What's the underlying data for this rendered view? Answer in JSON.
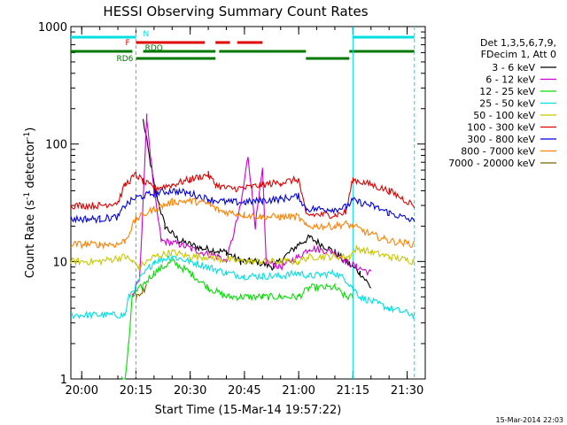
{
  "chart_data": {
    "type": "line",
    "title": "HESSI Observing Summary Count Rates",
    "xlabel": "Start Time (15-Mar-14 19:57:22)",
    "ylabel": "Count Rate (s",
    "ylabel_sup": "-1",
    "ylabel_mid": " detector",
    "ylabel_end": ")",
    "yscale": "log",
    "ylim": [
      1,
      1000
    ],
    "xlim_minutes": [
      "19:57",
      "21:35"
    ],
    "x_ticks": [
      "20:00",
      "20:15",
      "20:30",
      "20:45",
      "21:00",
      "21:15",
      "21:30"
    ],
    "y_ticks": [
      "1",
      "10",
      "100",
      "1000"
    ],
    "legend_header": [
      "Det 1,3,5,6,7,9,",
      "FDecim 1, Att 0"
    ],
    "legend_position": "right",
    "timestamp": "15-Mar-2014 22:03",
    "flags": [
      {
        "name": "N",
        "color": "#00e0e0",
        "segments": [
          [
            "19:57",
            "20:15"
          ],
          [
            "21:15",
            "21:32"
          ]
        ]
      },
      {
        "name": "F",
        "color": "#e00000",
        "segments": [
          [
            "20:15",
            "20:34"
          ],
          [
            "20:37",
            "20:41"
          ],
          [
            "20:43",
            "20:50"
          ]
        ]
      },
      {
        "name": "RDO",
        "color": "#007800",
        "segments": [
          [
            "19:57",
            "20:14"
          ],
          [
            "20:17",
            "20:37"
          ],
          [
            "20:38",
            "21:02"
          ],
          [
            "21:14",
            "21:32"
          ]
        ]
      },
      {
        "name": "RD6",
        "color": "#007800",
        "segments": [
          [
            "20:15",
            "20:37"
          ],
          [
            "21:02",
            "21:14"
          ]
        ]
      }
    ],
    "series": [
      {
        "name": "3 - 6 keV",
        "color": "#000000",
        "points": [
          [
            "20:17",
            160
          ],
          [
            "20:20",
            45
          ],
          [
            "20:23",
            20
          ],
          [
            "20:27",
            15
          ],
          [
            "20:33",
            13
          ],
          [
            "20:40",
            12
          ],
          [
            "20:44",
            10
          ],
          [
            "20:48",
            10
          ],
          [
            "20:53",
            9
          ],
          [
            "21:00",
            14
          ],
          [
            "21:03",
            16
          ],
          [
            "21:10",
            12
          ],
          [
            "21:13",
            10
          ],
          [
            "21:17",
            8
          ],
          [
            "21:20",
            6
          ]
        ]
      },
      {
        "name": "6 - 12 keV",
        "color": "#d000d0",
        "points": [
          [
            "20:14",
            5
          ],
          [
            "20:16",
            7
          ],
          [
            "20:18",
            170
          ],
          [
            "20:20",
            40
          ],
          [
            "20:22",
            15
          ],
          [
            "20:27",
            14
          ],
          [
            "20:33",
            12
          ],
          [
            "20:38",
            11
          ],
          [
            "20:40",
            10
          ],
          [
            "20:44",
            30
          ],
          [
            "20:46",
            80
          ],
          [
            "20:48",
            20
          ],
          [
            "20:50",
            60
          ],
          [
            "20:51",
            10
          ],
          [
            "20:55",
            9
          ],
          [
            "21:00",
            11
          ],
          [
            "21:03",
            13
          ],
          [
            "21:10",
            12
          ],
          [
            "21:13",
            10
          ],
          [
            "21:16",
            9
          ],
          [
            "21:20",
            8
          ]
        ]
      },
      {
        "name": "12 - 25 keV",
        "color": "#00e000",
        "points": [
          [
            "20:11",
            1.0
          ],
          [
            "20:12",
            1.0
          ],
          [
            "20:13",
            2
          ],
          [
            "20:14",
            5
          ],
          [
            "20:20",
            8
          ],
          [
            "20:25",
            10
          ],
          [
            "20:30",
            8
          ],
          [
            "20:35",
            6
          ],
          [
            "20:40",
            5
          ],
          [
            "20:45",
            5
          ],
          [
            "20:50",
            5
          ],
          [
            "20:55",
            5
          ],
          [
            "21:00",
            5
          ],
          [
            "21:03",
            6
          ],
          [
            "21:10",
            6
          ],
          [
            "21:13",
            5
          ],
          [
            "21:15",
            5
          ]
        ]
      },
      {
        "name": "25 - 50 keV",
        "color": "#00e0e0",
        "points": [
          [
            "19:57",
            3.5
          ],
          [
            "20:05",
            3.5
          ],
          [
            "20:12",
            3.5
          ],
          [
            "20:13",
            5
          ],
          [
            "20:16",
            7
          ],
          [
            "20:20",
            10
          ],
          [
            "20:25",
            11
          ],
          [
            "20:30",
            10
          ],
          [
            "20:35",
            9
          ],
          [
            "20:40",
            8
          ],
          [
            "20:45",
            7.5
          ],
          [
            "20:50",
            7.5
          ],
          [
            "20:55",
            7.5
          ],
          [
            "21:00",
            8
          ],
          [
            "21:03",
            7.5
          ],
          [
            "21:10",
            8
          ],
          [
            "21:13",
            7
          ],
          [
            "21:15",
            6
          ],
          [
            "21:17",
            5
          ],
          [
            "21:25",
            4
          ],
          [
            "21:32",
            3.5
          ]
        ]
      },
      {
        "name": "50 - 100 keV",
        "color": "#c8c800",
        "points": [
          [
            "19:57",
            10
          ],
          [
            "20:05",
            10
          ],
          [
            "20:12",
            11
          ],
          [
            "20:14",
            10
          ],
          [
            "20:16",
            9
          ],
          [
            "20:20",
            11
          ],
          [
            "20:25",
            12
          ],
          [
            "20:30",
            11
          ],
          [
            "20:35",
            11
          ],
          [
            "20:38",
            10.5
          ],
          [
            "20:45",
            10
          ],
          [
            "20:50",
            10
          ],
          [
            "20:55",
            10
          ],
          [
            "21:00",
            10
          ],
          [
            "21:03",
            11
          ],
          [
            "21:10",
            11
          ],
          [
            "21:14",
            11
          ],
          [
            "21:16",
            13
          ],
          [
            "21:20",
            12
          ],
          [
            "21:25",
            11
          ],
          [
            "21:32",
            10
          ]
        ]
      },
      {
        "name": "100 - 300 keV",
        "color": "#e00000",
        "points": [
          [
            "19:57",
            30
          ],
          [
            "20:05",
            30
          ],
          [
            "20:10",
            32
          ],
          [
            "20:12",
            45
          ],
          [
            "20:15",
            55
          ],
          [
            "20:17",
            48
          ],
          [
            "20:20",
            42
          ],
          [
            "20:25",
            45
          ],
          [
            "20:30",
            50
          ],
          [
            "20:35",
            55
          ],
          [
            "20:37",
            45
          ],
          [
            "20:40",
            42
          ],
          [
            "20:45",
            42
          ],
          [
            "20:50",
            45
          ],
          [
            "20:55",
            47
          ],
          [
            "21:00",
            50
          ],
          [
            "21:02",
            25
          ],
          [
            "21:10",
            25
          ],
          [
            "21:13",
            26
          ],
          [
            "21:15",
            50
          ],
          [
            "21:20",
            45
          ],
          [
            "21:25",
            40
          ],
          [
            "21:32",
            30
          ]
        ]
      },
      {
        "name": "300 - 800 keV",
        "color": "#0000e0",
        "points": [
          [
            "19:57",
            23
          ],
          [
            "20:05",
            23
          ],
          [
            "20:10",
            24
          ],
          [
            "20:12",
            30
          ],
          [
            "20:15",
            35
          ],
          [
            "20:20",
            38
          ],
          [
            "20:25",
            40
          ],
          [
            "20:30",
            38
          ],
          [
            "20:35",
            34
          ],
          [
            "20:40",
            32
          ],
          [
            "20:45",
            32
          ],
          [
            "20:50",
            33
          ],
          [
            "20:55",
            34
          ],
          [
            "21:00",
            36
          ],
          [
            "21:02",
            28
          ],
          [
            "21:10",
            28
          ],
          [
            "21:13",
            29
          ],
          [
            "21:15",
            33
          ],
          [
            "21:20",
            30
          ],
          [
            "21:25",
            26
          ],
          [
            "21:32",
            22
          ]
        ]
      },
      {
        "name": "800 - 7000 keV",
        "color": "#ff8000",
        "points": [
          [
            "19:57",
            14
          ],
          [
            "20:05",
            14
          ],
          [
            "20:10",
            14
          ],
          [
            "20:12",
            15
          ],
          [
            "20:15",
            23
          ],
          [
            "20:20",
            28
          ],
          [
            "20:25",
            32
          ],
          [
            "20:30",
            33
          ],
          [
            "20:35",
            31
          ],
          [
            "20:38",
            27
          ],
          [
            "20:45",
            25
          ],
          [
            "20:50",
            24
          ],
          [
            "20:55",
            24
          ],
          [
            "21:00",
            24
          ],
          [
            "21:02",
            20
          ],
          [
            "21:10",
            20
          ],
          [
            "21:13",
            21
          ],
          [
            "21:15",
            20
          ],
          [
            "21:20",
            17
          ],
          [
            "21:25",
            15
          ],
          [
            "21:32",
            14
          ]
        ]
      },
      {
        "name": "7000 - 20000 keV",
        "color": "#806000",
        "points": [
          [
            "20:15",
            5
          ],
          [
            "20:18",
            6
          ]
        ]
      }
    ]
  }
}
